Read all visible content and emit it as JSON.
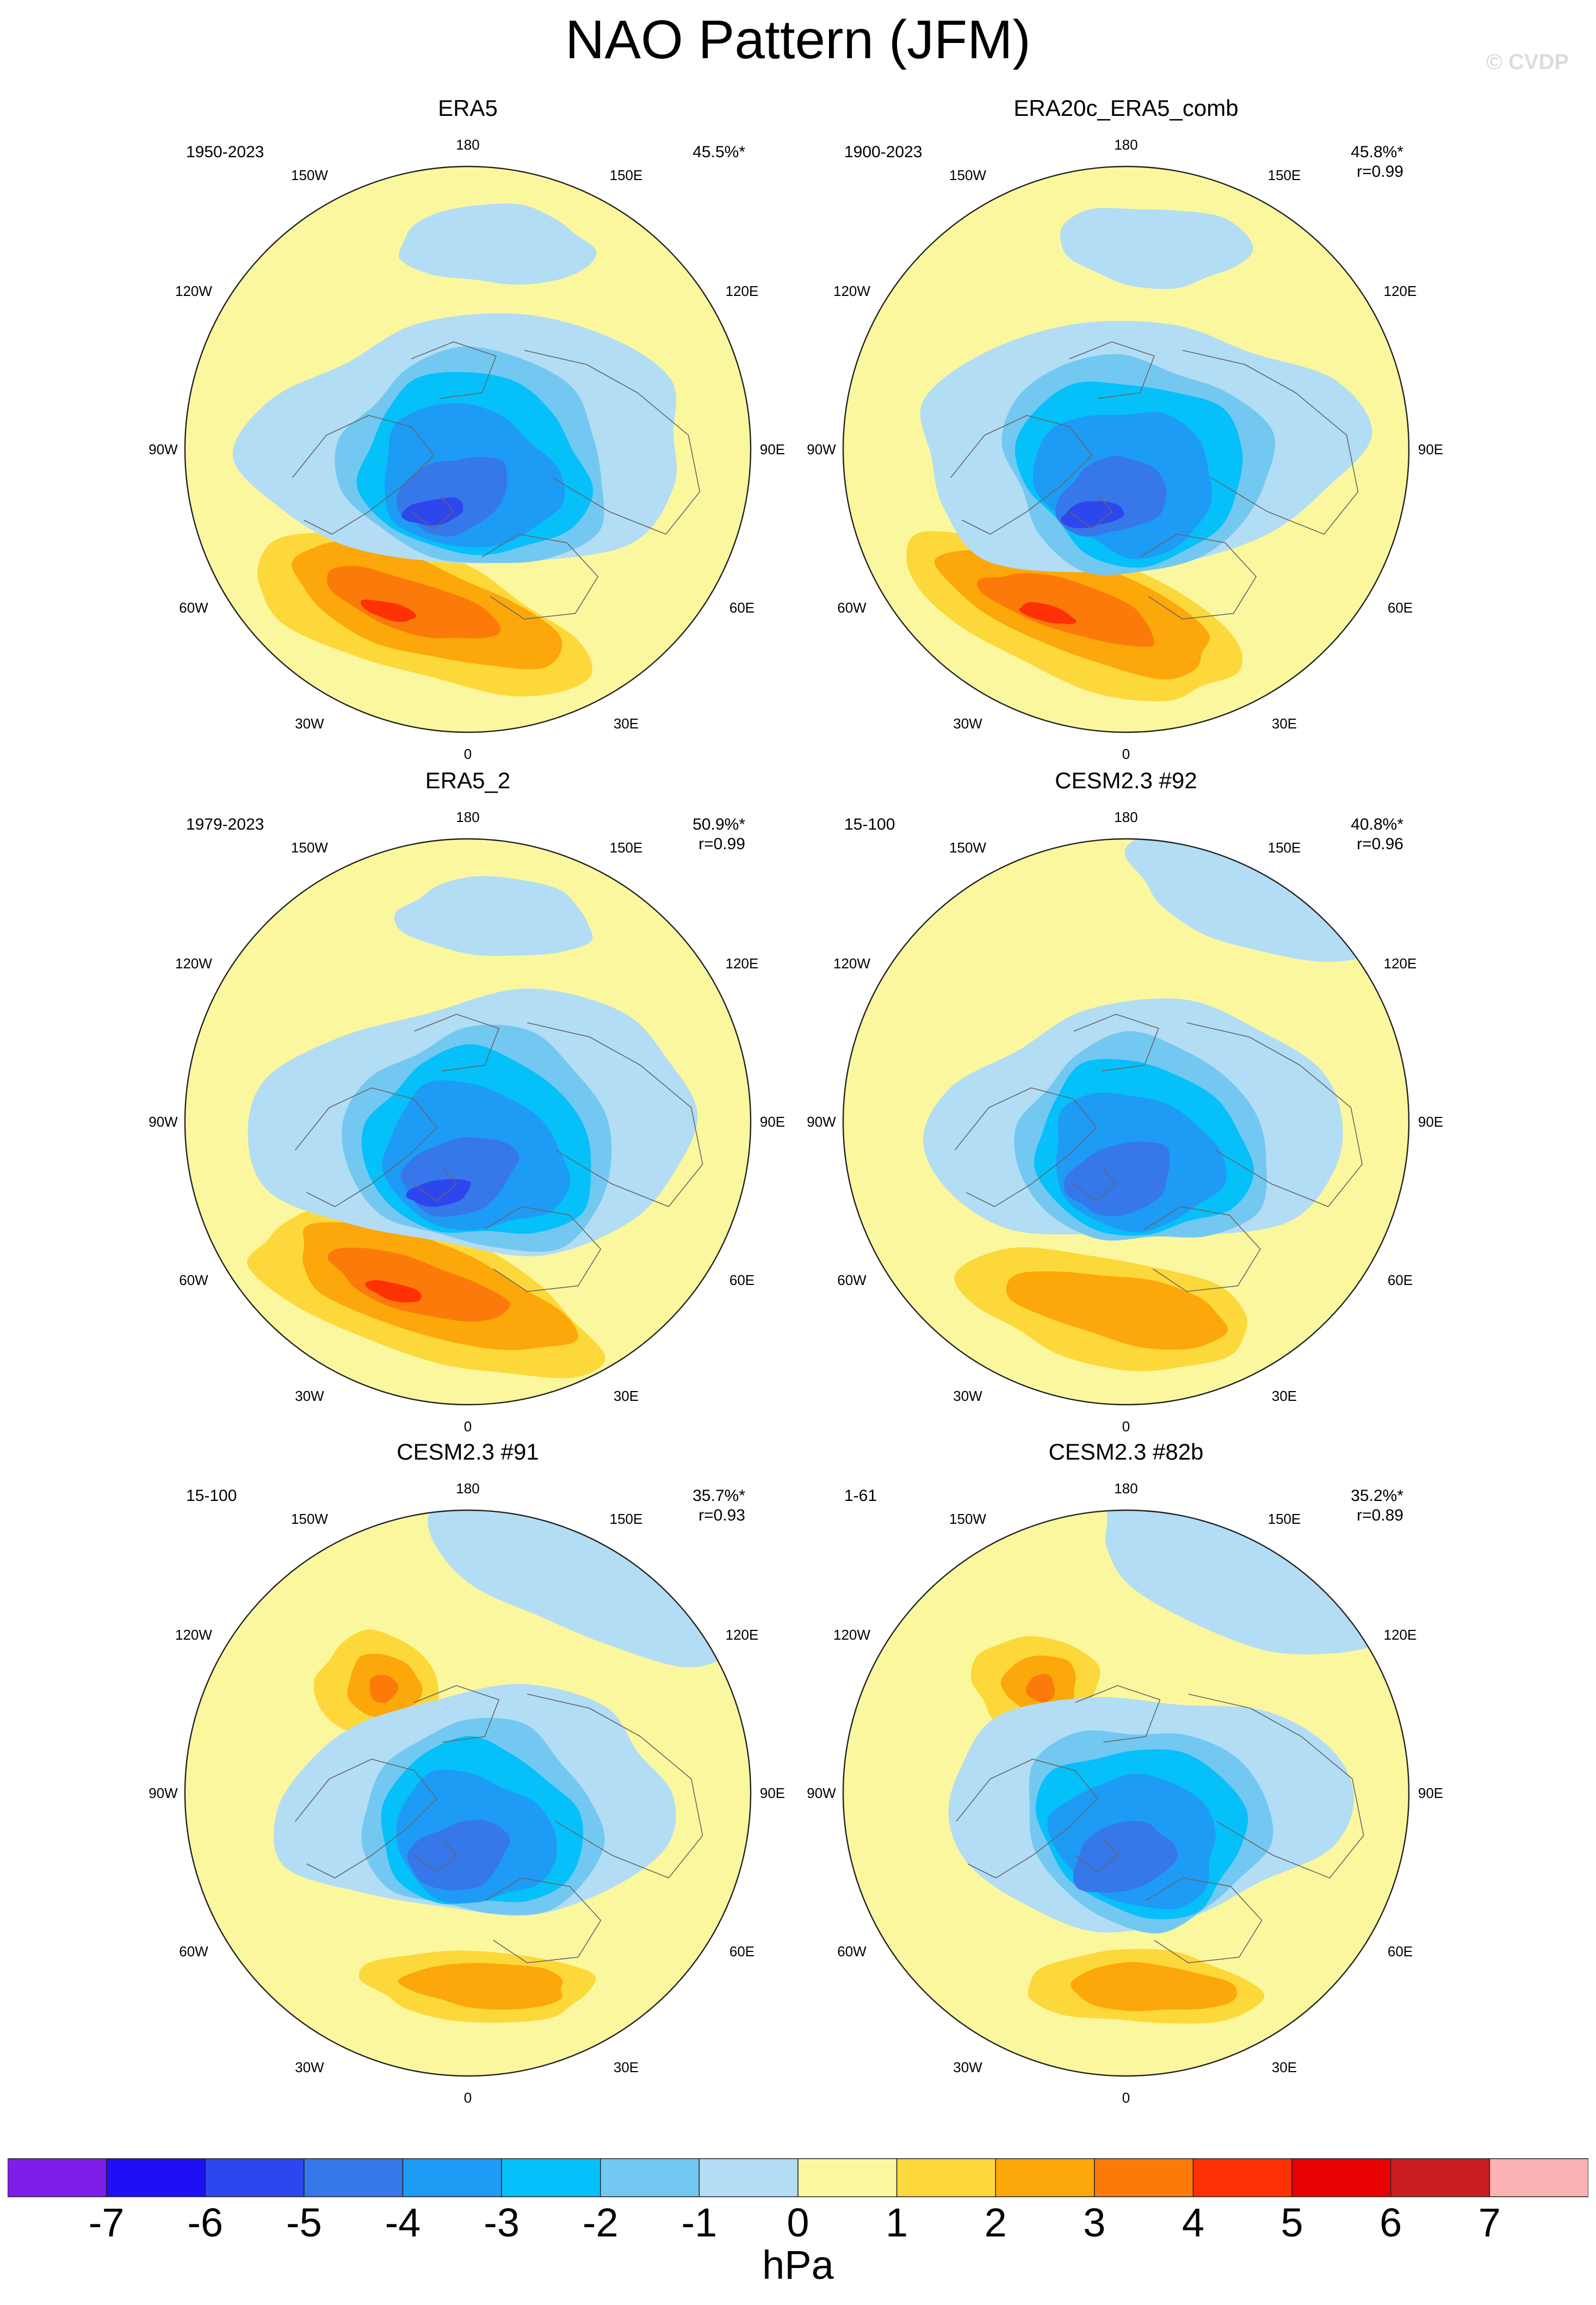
{
  "title": "NAO Pattern (JFM)",
  "watermark": "© CVDP",
  "colorbar": {
    "units": "hPa",
    "ticks": [
      "-7",
      "-6",
      "-5",
      "-4",
      "-3",
      "-2",
      "-1",
      "0",
      "1",
      "2",
      "3",
      "4",
      "5",
      "6",
      "7"
    ],
    "colors": [
      "#7e1ee8",
      "#1f0ff5",
      "#2e46ee",
      "#3677ea",
      "#1e9bf5",
      "#06c0fa",
      "#73c8f1",
      "#b2ddf5",
      "#fbf79e",
      "#fdd83a",
      "#fca70a",
      "#fc7a0a",
      "#fd3104",
      "#e60202",
      "#cb1e21",
      "#fcb2b2"
    ]
  },
  "lon_labels": [
    "180",
    "150E",
    "120E",
    "90E",
    "60E",
    "30E",
    "0",
    "30W",
    "60W",
    "90W",
    "120W",
    "150W"
  ],
  "panels": [
    {
      "title": "ERA5",
      "period": "1950-2023",
      "pct": "45.5%*",
      "r": "",
      "shift_x": 0,
      "shift_y": 0,
      "scale": 1.0,
      "variant": "obs"
    },
    {
      "title": "ERA20c_ERA5_comb",
      "period": "1900-2023",
      "pct": "45.8%*",
      "r": "r=0.99",
      "shift_x": 0,
      "shift_y": 0.01,
      "scale": 1.0,
      "variant": "obs"
    },
    {
      "title": "ERA5_2",
      "period": "1979-2023",
      "pct": "50.9%*",
      "r": "r=0.99",
      "shift_x": 0.02,
      "shift_y": 0.03,
      "scale": 1.02,
      "variant": "obs"
    },
    {
      "title": "CESM2.3 #92",
      "period": "15-100",
      "pct": "40.8%*",
      "r": "r=0.96",
      "shift_x": 0.03,
      "shift_y": 0.04,
      "scale": 0.95,
      "variant": "model"
    },
    {
      "title": "CESM2.3 #91",
      "period": "15-100",
      "pct": "35.7%*",
      "r": "r=0.93",
      "shift_x": 0.02,
      "shift_y": 0.06,
      "scale": 0.9,
      "variant": "model-pac"
    },
    {
      "title": "CESM2.3 #82b",
      "period": "1-61",
      "pct": "35.2%*",
      "r": "r=0.89",
      "shift_x": 0.04,
      "shift_y": 0.07,
      "scale": 0.92,
      "variant": "model-pac"
    }
  ]
}
